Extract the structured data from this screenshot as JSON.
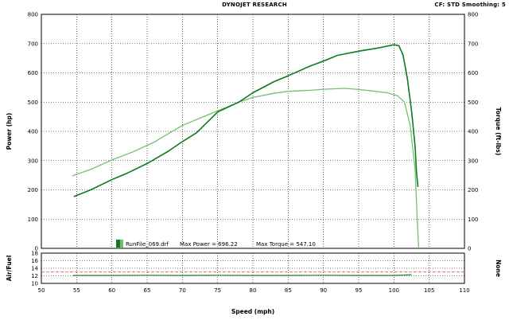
{
  "header": {
    "title": "DYNOJET RESEARCH",
    "info": "CF: STD  Smoothing: 5"
  },
  "legend": {
    "run_label": "RunFile_069.drf",
    "max_power_label": "Max Power = 696.22",
    "max_torque_label": "Max Torque = 547.10"
  },
  "colors": {
    "power_series": "#0e7a1e",
    "torque_series": "#74c070",
    "afr_series": "#1e8a2e",
    "afr_reference": "#e04040",
    "grid": "#000000"
  },
  "chart_data": [
    {
      "type": "line",
      "xlabel": "Speed (mph)",
      "ylabel": "Power (hp)",
      "y2label": "Torque (ft-lbs)",
      "xlim": [
        50,
        110
      ],
      "ylim": [
        0,
        800
      ],
      "y2lim": [
        0,
        800
      ],
      "x_ticks": [
        50,
        55,
        60,
        65,
        70,
        75,
        80,
        85,
        90,
        95,
        100,
        105,
        110
      ],
      "y_ticks": [
        0,
        100,
        200,
        300,
        400,
        500,
        600,
        700,
        800
      ],
      "grid": true,
      "series": [
        {
          "name": "Power",
          "x": [
            54.6,
            57,
            60,
            62,
            65,
            68,
            70,
            72,
            75,
            78,
            80,
            83,
            85,
            88,
            90,
            92,
            95,
            98,
            100,
            100.7,
            101.3,
            101.9,
            102.5,
            103,
            103.2,
            103.4
          ],
          "y": [
            177,
            200,
            235,
            255,
            290,
            332,
            365,
            395,
            466,
            500,
            532,
            570,
            590,
            622,
            640,
            660,
            674,
            686,
            696,
            693,
            660,
            580,
            470,
            350,
            260,
            210
          ]
        },
        {
          "name": "Torque",
          "x": [
            54.4,
            57,
            60,
            63,
            66,
            68,
            70,
            73,
            76,
            78,
            80,
            83,
            85,
            88,
            90,
            93,
            95,
            97,
            99,
            100.5,
            101.5,
            102.3,
            103,
            103.3,
            103.5
          ],
          "y": [
            248,
            270,
            302,
            330,
            363,
            392,
            420,
            450,
            480,
            500,
            516,
            530,
            537,
            540,
            544,
            547,
            543,
            538,
            532,
            522,
            500,
            420,
            270,
            100,
            0
          ]
        }
      ]
    },
    {
      "type": "line",
      "ylabel": "Air/Fuel",
      "y2label": "None",
      "xlim": [
        50,
        110
      ],
      "ylim": [
        10,
        18
      ],
      "y_ticks": [
        10,
        12,
        14,
        16,
        18
      ],
      "reference_line": 13,
      "grid": true,
      "series": [
        {
          "name": "Air/Fuel",
          "x": [
            54.5,
            60,
            65,
            70,
            75,
            80,
            85,
            90,
            95,
            100,
            102.5
          ],
          "y": [
            12.1,
            12.1,
            12.15,
            12.1,
            12.15,
            12.1,
            12.1,
            12.15,
            12.1,
            12.1,
            12.3
          ]
        }
      ]
    }
  ]
}
